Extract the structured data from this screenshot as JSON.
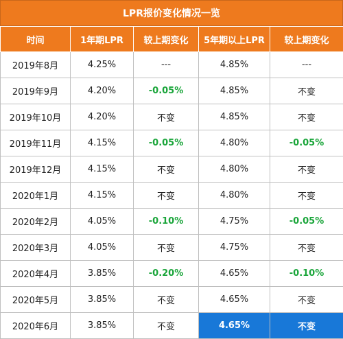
{
  "title": "LPR报价变化情况一览",
  "headers": [
    "时间",
    "1年期LPR",
    "较上期变化",
    "5年期以上LPR",
    "较上期变化"
  ],
  "rows": [
    {
      "date": "2019年8月",
      "lpr1y": "4.25%",
      "chg1y": "---",
      "lpr5y": "4.85%",
      "chg5y": "---"
    },
    {
      "date": "2019年9月",
      "lpr1y": "4.20%",
      "chg1y": "-0.05%",
      "lpr5y": "4.85%",
      "chg5y": "不变"
    },
    {
      "date": "2019年10月",
      "lpr1y": "4.20%",
      "chg1y": "不变",
      "lpr5y": "4.85%",
      "chg5y": "不变"
    },
    {
      "date": "2019年11月",
      "lpr1y": "4.15%",
      "chg1y": "-0.05%",
      "lpr5y": "4.80%",
      "chg5y": "-0.05%"
    },
    {
      "date": "2019年12月",
      "lpr1y": "4.15%",
      "chg1y": "不变",
      "lpr5y": "4.80%",
      "chg5y": "不变"
    },
    {
      "date": "2020年1月",
      "lpr1y": "4.15%",
      "chg1y": "不变",
      "lpr5y": "4.80%",
      "chg5y": "不变"
    },
    {
      "date": "2020年2月",
      "lpr1y": "4.05%",
      "chg1y": "-0.10%",
      "lpr5y": "4.75%",
      "chg5y": "-0.05%"
    },
    {
      "date": "2020年3月",
      "lpr1y": "4.05%",
      "chg1y": "不变",
      "lpr5y": "4.75%",
      "chg5y": "不变"
    },
    {
      "date": "2020年4月",
      "lpr1y": "3.85%",
      "chg1y": "-0.20%",
      "lpr5y": "4.65%",
      "chg5y": "-0.10%"
    },
    {
      "date": "2020年5月",
      "lpr1y": "3.85%",
      "chg1y": "不变",
      "lpr5y": "4.65%",
      "chg5y": "不变"
    },
    {
      "date": "2020年6月",
      "lpr1y": "3.85%",
      "chg1y": "不变",
      "lpr5y": "4.65%",
      "chg5y": "不变"
    }
  ],
  "colors": {
    "header_bg": "#ee7a1e",
    "decrease_text": "#1aa53a",
    "highlight_bg": "#1878d8"
  }
}
